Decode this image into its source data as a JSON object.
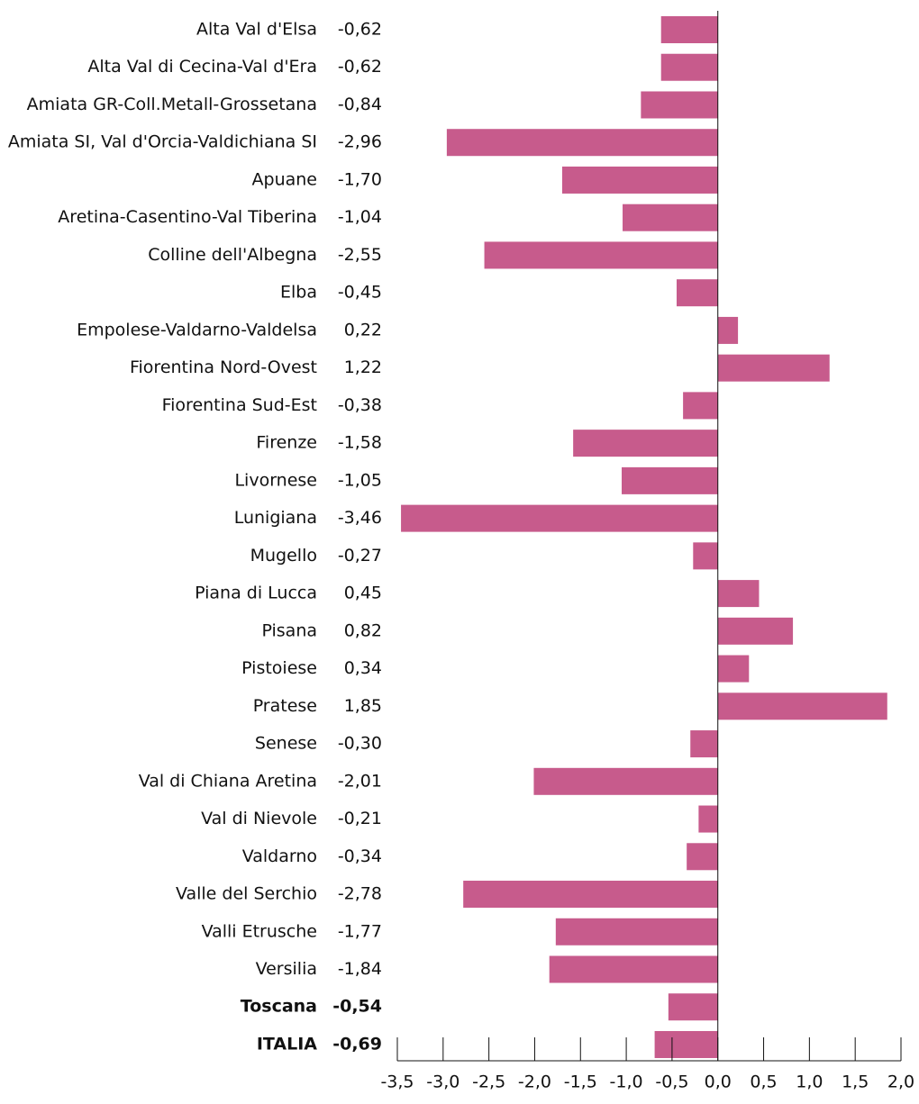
{
  "chart_data": {
    "type": "barh",
    "categories": [
      "Alta Val d'Elsa",
      "Alta Val di Cecina-Val d'Era",
      "Amiata GR-Coll.Metall-Grossetana",
      "Amiata SI, Val d'Orcia-Valdichiana SI",
      "Apuane",
      "Aretina-Casentino-Val Tiberina",
      "Colline dell'Albegna",
      "Elba",
      "Empolese-Valdarno-Valdelsa",
      "Fiorentina Nord-Ovest",
      "Fiorentina Sud-Est",
      "Firenze",
      "Livornese",
      "Lunigiana",
      "Mugello",
      "Piana di Lucca",
      "Pisana",
      "Pistoiese",
      "Pratese",
      "Senese",
      "Val di Chiana Aretina",
      "Val di Nievole",
      "Valdarno",
      "Valle del Serchio",
      "Valli Etrusche",
      "Versilia",
      "Toscana",
      "ITALIA"
    ],
    "values": [
      -0.62,
      -0.62,
      -0.84,
      -2.96,
      -1.7,
      -1.04,
      -2.55,
      -0.45,
      0.22,
      1.22,
      -0.38,
      -1.58,
      -1.05,
      -3.46,
      -0.27,
      0.45,
      0.82,
      0.34,
      1.85,
      -0.3,
      -2.01,
      -0.21,
      -0.34,
      -2.78,
      -1.77,
      -1.84,
      -0.54,
      -0.69
    ],
    "value_labels": [
      "-0,62",
      "-0,62",
      "-0,84",
      "-2,96",
      "-1,70",
      "-1,04",
      "-2,55",
      "-0,45",
      "0,22",
      "1,22",
      "-0,38",
      "-1,58",
      "-1,05",
      "-3,46",
      "-0,27",
      "0,45",
      "0,82",
      "0,34",
      "1,85",
      "-0,30",
      "-2,01",
      "-0,21",
      "-0,34",
      "-2,78",
      "-1,77",
      "-1,84",
      "-0,54",
      "-0,69"
    ],
    "color": "#c75b8c",
    "xlim": [
      -3.5,
      2.0
    ],
    "xticks": [
      {
        "value": -3.5,
        "label": "-3,5"
      },
      {
        "value": -3.0,
        "label": "-3,0"
      },
      {
        "value": -2.5,
        "label": "-2,5"
      },
      {
        "value": -2.0,
        "label": "-2,0"
      },
      {
        "value": -1.5,
        "label": "-1,5"
      },
      {
        "value": -1.0,
        "label": "-1,0"
      },
      {
        "value": -0.5,
        "label": "-0,5"
      },
      {
        "value": 0.0,
        "label": "0,0"
      },
      {
        "value": 0.5,
        "label": "0,5"
      },
      {
        "value": 1.0,
        "label": "1,0"
      },
      {
        "value": 1.5,
        "label": "1,5"
      },
      {
        "value": 2.0,
        "label": "2,0"
      }
    ]
  }
}
